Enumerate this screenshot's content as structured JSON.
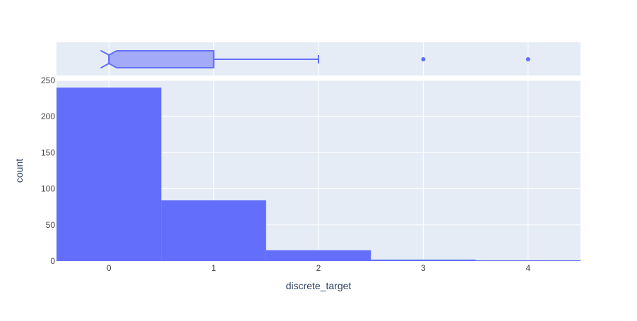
{
  "chart_data": {
    "type": "bar",
    "subtype": "histogram-with-marginal-box",
    "x": [
      0,
      1,
      2,
      3,
      4
    ],
    "values": [
      240,
      84,
      15,
      2,
      1
    ],
    "xlabel": "discrete_target",
    "ylabel": "count",
    "xlim": [
      -0.5,
      4.5
    ],
    "ylim": [
      0,
      250
    ],
    "x_ticks": [
      "0",
      "1",
      "2",
      "3",
      "4"
    ],
    "y_ticks": [
      "0",
      "50",
      "100",
      "150",
      "200",
      "250"
    ],
    "grid": true,
    "box": {
      "orientation": "horizontal",
      "notched": true,
      "min": 0,
      "q1": 0,
      "median": 0,
      "q3": 1,
      "upper_whisker": 2,
      "outliers": [
        3,
        4
      ]
    }
  },
  "colors": {
    "bar": "#636efa",
    "box_fill": "#a3aaf8",
    "plot_bg": "#e5ecf6",
    "grid": "#ffffff",
    "text": "#2a3f5f",
    "tick_text": "#444444"
  }
}
